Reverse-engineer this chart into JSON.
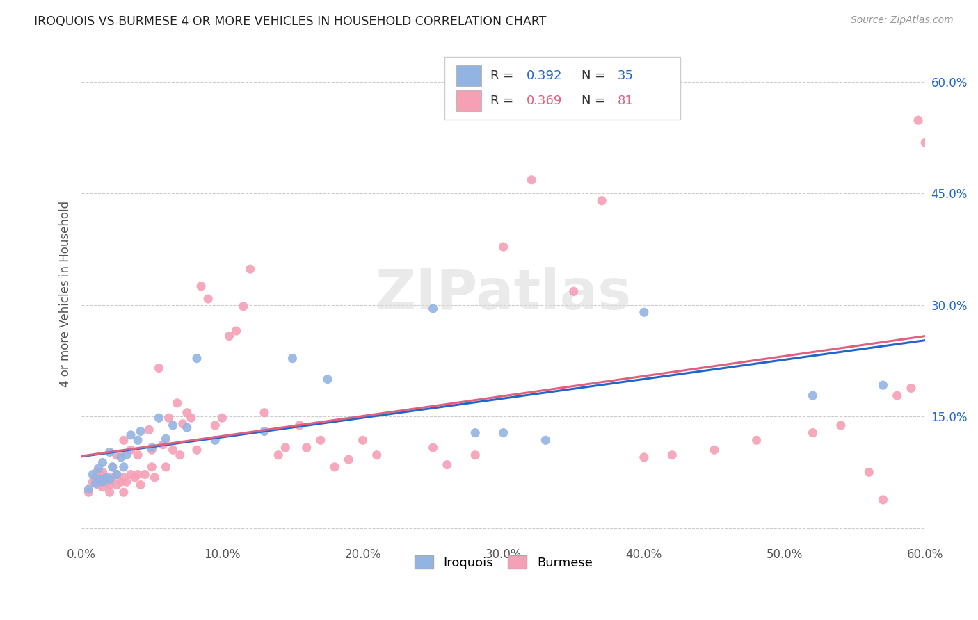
{
  "title": "IROQUOIS VS BURMESE 4 OR MORE VEHICLES IN HOUSEHOLD CORRELATION CHART",
  "source": "Source: ZipAtlas.com",
  "ylabel": "4 or more Vehicles in Household",
  "xlim": [
    0.0,
    0.6
  ],
  "ylim": [
    -0.02,
    0.65
  ],
  "ytick_vals": [
    0.0,
    0.15,
    0.3,
    0.45,
    0.6
  ],
  "ytick_labels": [
    "",
    "15.0%",
    "30.0%",
    "45.0%",
    "60.0%"
  ],
  "xtick_vals": [
    0.0,
    0.1,
    0.2,
    0.3,
    0.4,
    0.5,
    0.6
  ],
  "xtick_labels": [
    "0.0%",
    "10.0%",
    "20.0%",
    "30.0%",
    "40.0%",
    "50.0%",
    "60.0%"
  ],
  "grid_color": "#cccccc",
  "bg_color": "#ffffff",
  "iroquois_color": "#92b4e3",
  "iroquois_line_color": "#2266cc",
  "burmese_color": "#f5a0b5",
  "burmese_line_color": "#e06080",
  "iroquois_R": 0.392,
  "iroquois_N": 35,
  "burmese_R": 0.369,
  "burmese_N": 81,
  "iroquois_x": [
    0.005,
    0.008,
    0.01,
    0.012,
    0.013,
    0.015,
    0.015,
    0.018,
    0.02,
    0.02,
    0.022,
    0.025,
    0.028,
    0.03,
    0.032,
    0.035,
    0.04,
    0.042,
    0.05,
    0.055,
    0.06,
    0.065,
    0.075,
    0.082,
    0.095,
    0.13,
    0.15,
    0.175,
    0.25,
    0.28,
    0.3,
    0.33,
    0.4,
    0.52,
    0.57
  ],
  "iroquois_y": [
    0.052,
    0.072,
    0.06,
    0.08,
    0.065,
    0.062,
    0.088,
    0.068,
    0.065,
    0.102,
    0.082,
    0.072,
    0.095,
    0.082,
    0.098,
    0.125,
    0.118,
    0.13,
    0.108,
    0.148,
    0.12,
    0.138,
    0.135,
    0.228,
    0.118,
    0.13,
    0.228,
    0.2,
    0.295,
    0.128,
    0.128,
    0.118,
    0.29,
    0.178,
    0.192
  ],
  "burmese_x": [
    0.005,
    0.008,
    0.01,
    0.011,
    0.012,
    0.013,
    0.015,
    0.015,
    0.016,
    0.018,
    0.02,
    0.02,
    0.022,
    0.022,
    0.025,
    0.025,
    0.025,
    0.028,
    0.03,
    0.03,
    0.03,
    0.032,
    0.035,
    0.035,
    0.038,
    0.04,
    0.04,
    0.042,
    0.045,
    0.048,
    0.05,
    0.05,
    0.052,
    0.055,
    0.058,
    0.06,
    0.062,
    0.065,
    0.068,
    0.07,
    0.072,
    0.075,
    0.078,
    0.082,
    0.085,
    0.09,
    0.095,
    0.1,
    0.105,
    0.11,
    0.115,
    0.12,
    0.13,
    0.14,
    0.145,
    0.155,
    0.16,
    0.17,
    0.18,
    0.19,
    0.2,
    0.21,
    0.25,
    0.26,
    0.28,
    0.3,
    0.32,
    0.35,
    0.37,
    0.4,
    0.42,
    0.45,
    0.48,
    0.52,
    0.54,
    0.56,
    0.57,
    0.58,
    0.59,
    0.595,
    0.6
  ],
  "burmese_y": [
    0.048,
    0.062,
    0.068,
    0.075,
    0.058,
    0.072,
    0.055,
    0.075,
    0.068,
    0.062,
    0.048,
    0.058,
    0.068,
    0.082,
    0.058,
    0.072,
    0.098,
    0.062,
    0.048,
    0.068,
    0.118,
    0.062,
    0.072,
    0.105,
    0.068,
    0.072,
    0.098,
    0.058,
    0.072,
    0.132,
    0.082,
    0.105,
    0.068,
    0.215,
    0.112,
    0.082,
    0.148,
    0.105,
    0.168,
    0.098,
    0.14,
    0.155,
    0.148,
    0.105,
    0.325,
    0.308,
    0.138,
    0.148,
    0.258,
    0.265,
    0.298,
    0.348,
    0.155,
    0.098,
    0.108,
    0.138,
    0.108,
    0.118,
    0.082,
    0.092,
    0.118,
    0.098,
    0.108,
    0.085,
    0.098,
    0.378,
    0.468,
    0.318,
    0.44,
    0.095,
    0.098,
    0.105,
    0.118,
    0.128,
    0.138,
    0.075,
    0.038,
    0.178,
    0.188,
    0.548,
    0.518
  ]
}
